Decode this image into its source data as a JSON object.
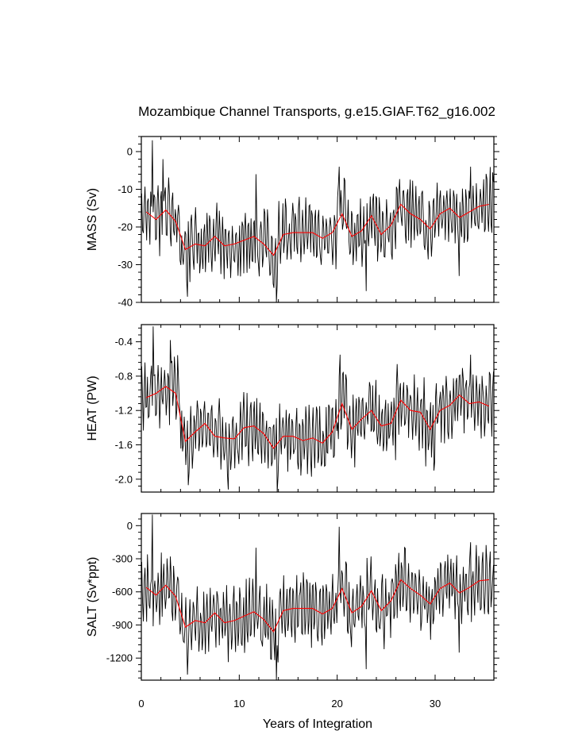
{
  "chart_data": {
    "type": "line",
    "title": "Mozambique Channel Transports, g.e15.GIAF.T62_g16.002",
    "xlabel": "Years of Integration",
    "xlim": [
      0,
      36
    ],
    "xticks": [
      0,
      10,
      20,
      30
    ],
    "xticklabels": [
      "0",
      "10",
      "20",
      "30"
    ],
    "series_colors": {
      "monthly": "#000000",
      "annual": "#ff0000"
    },
    "panels": [
      {
        "ylabel": "MASS (Sv)",
        "ylim": [
          -40,
          4
        ],
        "yticks": [
          0,
          -10,
          -20,
          -30,
          -40
        ],
        "yticklabels": [
          "0",
          "-10",
          "-20",
          "-30",
          "-40"
        ],
        "annual_x": [
          0.5,
          1.5,
          2.5,
          3.5,
          4.5,
          5.5,
          6.5,
          7.5,
          8.5,
          9.5,
          10.5,
          11.5,
          12.5,
          13.5,
          14.5,
          15.5,
          16.5,
          17.5,
          18.5,
          19.5,
          20.5,
          21.5,
          22.5,
          23.5,
          24.5,
          25.5,
          26.5,
          27.5,
          28.5,
          29.5,
          30.5,
          31.5,
          32.5,
          33.5,
          34.5,
          35.5
        ],
        "annual": [
          -16,
          -18,
          -15.5,
          -18.5,
          -26,
          -24.5,
          -25,
          -22.5,
          -25,
          -24.5,
          -23.5,
          -22.5,
          -24.5,
          -27.5,
          -22,
          -21.5,
          -21.5,
          -21.5,
          -23,
          -21.5,
          -16.5,
          -22.5,
          -21,
          -17,
          -22,
          -19.5,
          -14,
          -16.5,
          -18,
          -20.5,
          -16.5,
          -15,
          -17.5,
          -16,
          -14.5,
          -14
        ],
        "monthly_mean": -20.3,
        "monthly_amp": 7.5,
        "monthly_clip": [
          -40,
          3
        ],
        "monthly_peaks": [
          {
            "x": 1.1,
            "v": 3
          },
          {
            "x": 2.2,
            "v": -2
          },
          {
            "x": 4.7,
            "v": -38.5
          },
          {
            "x": 13.8,
            "v": -40
          },
          {
            "x": 11.7,
            "v": -6
          },
          {
            "x": 20.2,
            "v": -4
          },
          {
            "x": 23.0,
            "v": -37
          },
          {
            "x": 32.5,
            "v": -33
          },
          {
            "x": 33.6,
            "v": -4
          }
        ]
      },
      {
        "ylabel": "HEAT (PW)",
        "ylim": [
          -2.15,
          -0.2
        ],
        "yticks": [
          -0.4,
          -0.8,
          -1.2,
          -1.6,
          -2.0
        ],
        "yticklabels": [
          "-0.4",
          "-0.8",
          "-1.2",
          "-1.6",
          "-2.0"
        ],
        "annual_x": [
          0.5,
          1.5,
          2.5,
          3.5,
          4.5,
          5.5,
          6.5,
          7.5,
          8.5,
          9.5,
          10.5,
          11.5,
          12.5,
          13.5,
          14.5,
          15.5,
          16.5,
          17.5,
          18.5,
          19.5,
          20.5,
          21.5,
          22.5,
          23.5,
          24.5,
          25.5,
          26.5,
          27.5,
          28.5,
          29.5,
          30.5,
          31.5,
          32.5,
          33.5,
          34.5,
          35.5
        ],
        "annual": [
          -1.05,
          -1.0,
          -0.92,
          -1.0,
          -1.56,
          -1.45,
          -1.35,
          -1.5,
          -1.52,
          -1.53,
          -1.4,
          -1.38,
          -1.47,
          -1.64,
          -1.5,
          -1.5,
          -1.55,
          -1.52,
          -1.58,
          -1.45,
          -1.12,
          -1.42,
          -1.3,
          -1.2,
          -1.38,
          -1.35,
          -1.08,
          -1.2,
          -1.22,
          -1.42,
          -1.2,
          -1.14,
          -1.02,
          -1.12,
          -1.1,
          -1.15
        ],
        "monthly_mean": -1.3,
        "monthly_amp": 0.33,
        "monthly_clip": [
          -2.15,
          -0.22
        ],
        "monthly_peaks": [
          {
            "x": 1.2,
            "v": -0.22
          },
          {
            "x": 3.0,
            "v": -0.38
          },
          {
            "x": 4.8,
            "v": -2.07
          },
          {
            "x": 8.9,
            "v": -2.12
          },
          {
            "x": 13.9,
            "v": -2.15
          },
          {
            "x": 20.3,
            "v": -0.55
          },
          {
            "x": 29.9,
            "v": -1.9
          },
          {
            "x": 33.6,
            "v": -0.55
          }
        ]
      },
      {
        "ylabel": "SALT (Sv*ppt)",
        "ylim": [
          -1400,
          110
        ],
        "yticks": [
          0,
          -300,
          -600,
          -900,
          -1200
        ],
        "yticklabels": [
          "0",
          "-300",
          "-600",
          "-900",
          "-1200"
        ],
        "annual_x": [
          0.5,
          1.5,
          2.5,
          3.5,
          4.5,
          5.5,
          6.5,
          7.5,
          8.5,
          9.5,
          10.5,
          11.5,
          12.5,
          13.5,
          14.5,
          15.5,
          16.5,
          17.5,
          18.5,
          19.5,
          20.5,
          21.5,
          22.5,
          23.5,
          24.5,
          25.5,
          26.5,
          27.5,
          28.5,
          29.5,
          30.5,
          31.5,
          32.5,
          33.5,
          34.5,
          35.5
        ],
        "annual": [
          -560,
          -630,
          -540,
          -640,
          -920,
          -860,
          -880,
          -790,
          -880,
          -860,
          -820,
          -780,
          -850,
          -960,
          -770,
          -750,
          -750,
          -750,
          -800,
          -750,
          -570,
          -790,
          -730,
          -590,
          -770,
          -680,
          -490,
          -570,
          -630,
          -710,
          -570,
          -520,
          -610,
          -560,
          -500,
          -490
        ],
        "monthly_mean": -710,
        "monthly_amp": 260,
        "monthly_clip": [
          -1400,
          100
        ],
        "monthly_peaks": [
          {
            "x": 1.1,
            "v": 100
          },
          {
            "x": 4.7,
            "v": -1350
          },
          {
            "x": 11.7,
            "v": -200
          },
          {
            "x": 13.8,
            "v": -1400
          },
          {
            "x": 20.2,
            "v": -10
          },
          {
            "x": 23.0,
            "v": -1300
          },
          {
            "x": 32.5,
            "v": -1150
          },
          {
            "x": 33.6,
            "v": -150
          }
        ]
      }
    ]
  }
}
